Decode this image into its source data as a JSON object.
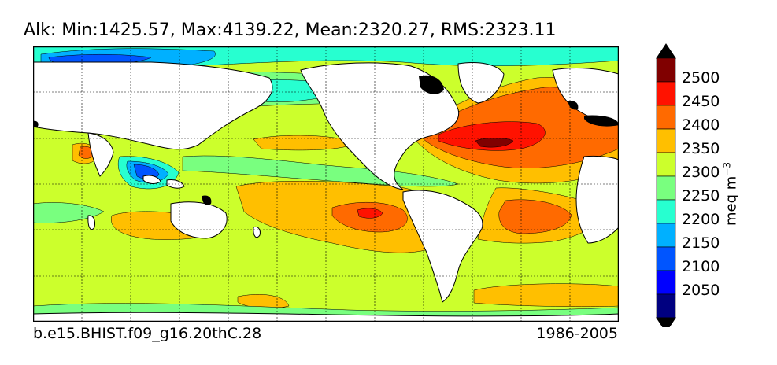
{
  "title": "Alk: Min:1425.57, Max:4139.22, Mean:2320.27, RMS:2323.11",
  "footer": {
    "case_name": "b.e15.BHIST.f09_g16.20thC.28",
    "period": "1986-2005"
  },
  "colorbar": {
    "label": "meq m",
    "label_exponent": "−3",
    "ticks": [
      "2500",
      "2450",
      "2400",
      "2350",
      "2300",
      "2250",
      "2200",
      "2150",
      "2100",
      "2050"
    ],
    "levels": [
      {
        "value": 2525,
        "color": "#800000"
      },
      {
        "value": 2475,
        "color": "#ff1200"
      },
      {
        "value": 2425,
        "color": "#ff6a00"
      },
      {
        "value": 2375,
        "color": "#ffbf00"
      },
      {
        "value": 2325,
        "color": "#ccff2c"
      },
      {
        "value": 2275,
        "color": "#79ff7f"
      },
      {
        "value": 2225,
        "color": "#27ffd0"
      },
      {
        "value": 2175,
        "color": "#00b0ff"
      },
      {
        "value": 2125,
        "color": "#0055ff"
      },
      {
        "value": 2075,
        "color": "#0000ff"
      },
      {
        "value": 2025,
        "color": "#000080"
      }
    ],
    "extend_max_color": "#000000",
    "extend_min_color": "#000000"
  },
  "map": {
    "projection": "cylindrical",
    "gridlines": true,
    "land_color": "#ffffff",
    "coastline_color": "#000000"
  }
}
